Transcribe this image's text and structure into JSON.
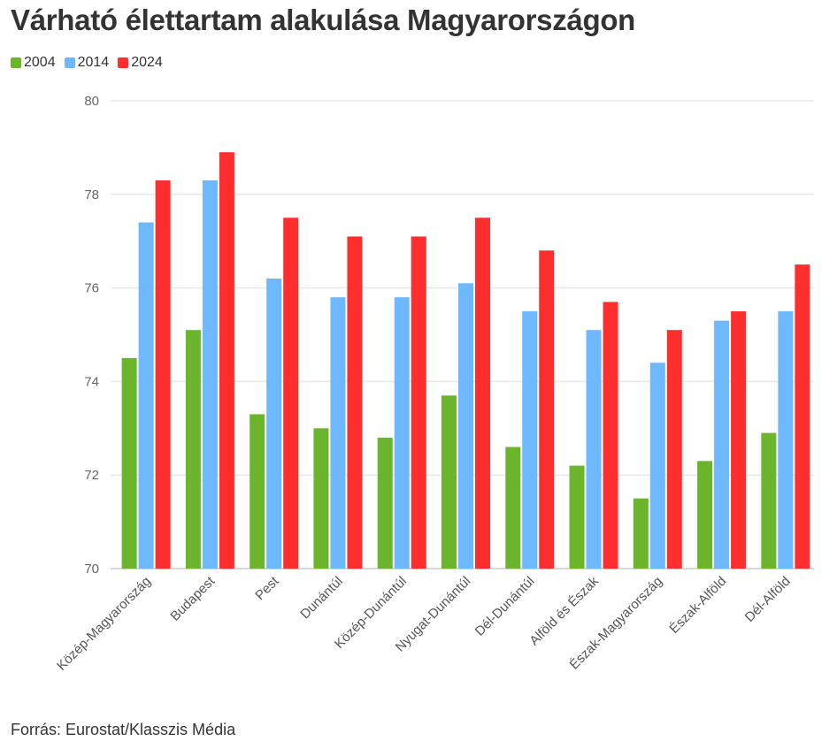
{
  "chart_data": {
    "type": "bar",
    "title": "Várható élettartam alakulása Magyarországon",
    "xlabel": "",
    "ylabel": "",
    "ylim": [
      70,
      80
    ],
    "yticks": [
      70,
      72,
      74,
      76,
      78,
      80
    ],
    "grid": true,
    "legend_position": "top-left",
    "categories": [
      "Közép-Magyarország",
      "Budapest",
      "Pest",
      "Dunántúl",
      "Közép-Dunántúl",
      "Nyugat-Dunántúl",
      "Dél-Dunántúl",
      "Alföld és Észak",
      "Észak-Magyarország",
      "Észak-Alföld",
      "Dél-Alföld"
    ],
    "series": [
      {
        "name": "2004",
        "color": "#6bb52c",
        "values": [
          74.5,
          75.1,
          73.3,
          73.0,
          72.8,
          73.7,
          72.6,
          72.2,
          71.5,
          72.3,
          72.9
        ]
      },
      {
        "name": "2014",
        "color": "#6db8ff",
        "values": [
          77.4,
          78.3,
          76.2,
          75.8,
          75.8,
          76.1,
          75.5,
          75.1,
          74.4,
          75.3,
          75.5
        ]
      },
      {
        "name": "2024",
        "color": "#ff2e2e",
        "values": [
          78.3,
          78.9,
          77.5,
          77.1,
          77.1,
          77.5,
          76.8,
          75.7,
          75.1,
          75.5,
          76.5
        ]
      }
    ],
    "source": "Forrás: Eurostat/Klasszis Média"
  }
}
